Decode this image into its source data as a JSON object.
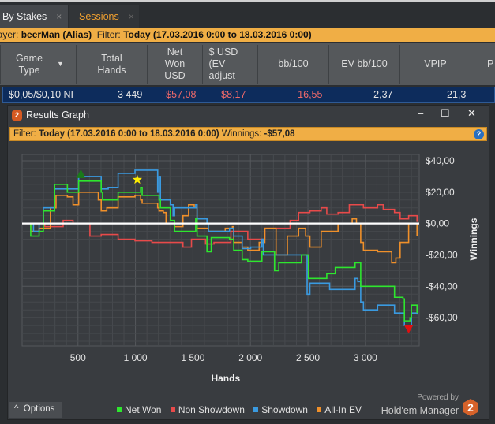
{
  "tabs": [
    {
      "label": "By Stakes",
      "close": "×",
      "active": true
    },
    {
      "label": "Sessions",
      "close": "×",
      "active": false
    }
  ],
  "filter_bar": {
    "player_label": "Player:",
    "player": "beerMan (Alias)",
    "filter_label": "Filter:",
    "filter": "Today (17.03.2016 0:00 to 18.03.2016 0:00)"
  },
  "table": {
    "columns": [
      "Game Type",
      "Total Hands",
      "Net Won USD",
      "$ USD (EV adjust",
      "bb/100",
      "EV bb/100",
      "VPIP",
      "P"
    ],
    "row": {
      "game_type": "$0,05/$0,10 NI",
      "total_hands": "3 449",
      "net_won": "-$57,08",
      "ev_usd": "-$8,17",
      "bb100": "-16,55",
      "ev_bb100": "-2,37",
      "vpip": "21,3"
    }
  },
  "window": {
    "title": "Results Graph",
    "filter_label": "Filter:",
    "filter": "Today (17.03.2016 0:00 to 18.03.2016 0:00)",
    "winnings_label": "Winnings:",
    "winnings": "-$57,08",
    "options_label": "Options",
    "powered_by": "Powered by",
    "brand": "Hold'em Manager",
    "brand_logo": "2"
  },
  "colors": {
    "net_won": "#2ee62e",
    "non_showdown": "#e84a4a",
    "showdown": "#3a9ae0",
    "all_in_ev": "#f0902a",
    "accent": "#f0ae45"
  },
  "chart_data": {
    "type": "line",
    "xlabel": "Hands",
    "ylabel": "Winnings",
    "grid": true,
    "legend": "bottom",
    "xlim": [
      14,
      3468
    ],
    "ylim": [
      -78,
      44
    ],
    "xticks": [
      500,
      1000,
      1500,
      2000,
      2500,
      3000
    ],
    "xtick_labels": [
      "500",
      "1 000",
      "1 500",
      "2 000",
      "2 500",
      "3 000"
    ],
    "yticks": [
      40,
      20,
      0,
      -20,
      -40,
      -60
    ],
    "ytick_labels": [
      "$40,00",
      "$20,00",
      "$0,00",
      "-$20,00",
      "-$40,00",
      "-$60,00"
    ],
    "series": [
      {
        "name": "Non Showdown",
        "x": [
          15,
          211,
          371,
          457,
          604,
          702,
          849,
          996,
          1143,
          1291,
          1413,
          1487,
          1610,
          1683,
          1830,
          1977,
          2125,
          2247,
          2345,
          2419,
          2517,
          2615,
          2664,
          2762,
          2860,
          2910,
          2983,
          3106,
          3155,
          3253,
          3302,
          3376,
          3449
        ],
        "y": [
          0,
          -2,
          2,
          0,
          -8,
          -7,
          -10,
          -11,
          -12,
          -12,
          -15,
          -10,
          -13,
          -12,
          -5,
          -10,
          -3,
          -3,
          2,
          7,
          8,
          10,
          6,
          7,
          12,
          12,
          10,
          12,
          9,
          7,
          3,
          5,
          1
        ]
      },
      {
        "name": "All-In EV",
        "x": [
          15,
          89,
          162,
          260,
          309,
          408,
          457,
          493,
          506,
          677,
          702,
          751,
          849,
          898,
          996,
          1045,
          1058,
          1193,
          1205,
          1242,
          1266,
          1340,
          1413,
          1462,
          1511,
          1536,
          1634,
          1781,
          1843,
          1855,
          1928,
          1977,
          2076,
          2125,
          2223,
          2321,
          2419,
          2480,
          2517,
          2615,
          2762,
          2885,
          2922,
          2959,
          2983,
          3106,
          3229,
          3265,
          3302,
          3376,
          3449
        ],
        "y": [
          0,
          -5,
          -3,
          10,
          18,
          17,
          12,
          12,
          20,
          15,
          8,
          10,
          17,
          17,
          18,
          15,
          13,
          10,
          8,
          7,
          0,
          -2,
          5,
          12,
          10,
          -3,
          -5,
          -3,
          -2,
          -12,
          -15,
          -17,
          -12,
          -3,
          -20,
          -8,
          -3,
          -8,
          -15,
          -5,
          0,
          3,
          0,
          -12,
          -17,
          -18,
          -25,
          -22,
          -12,
          0,
          -8
        ]
      },
      {
        "name": "Showdown",
        "x": [
          15,
          113,
          162,
          199,
          297,
          506,
          677,
          702,
          763,
          849,
          996,
          1058,
          1193,
          1205,
          1217,
          1303,
          1327,
          1340,
          1524,
          1536,
          1622,
          1634,
          1818,
          1855,
          1928,
          2002,
          2100,
          2112,
          2210,
          2272,
          2444,
          2480,
          2493,
          2517,
          2664,
          2689,
          2910,
          2934,
          2959,
          2983,
          3106,
          3253,
          3327,
          3339,
          3400,
          3449
        ],
        "y": [
          0,
          -5,
          0,
          10,
          22,
          30,
          30,
          22,
          23,
          32,
          34,
          34,
          20,
          30,
          15,
          12,
          5,
          10,
          12,
          3,
          0,
          -5,
          -3,
          -8,
          -16,
          -15,
          -10,
          -20,
          -20,
          -20,
          -20,
          -20,
          -45,
          -38,
          -38,
          -42,
          -35,
          -37,
          -50,
          -55,
          -52,
          -57,
          -57,
          -65,
          -57,
          -58
        ]
      },
      {
        "name": "Net Won",
        "x": [
          15,
          89,
          162,
          199,
          297,
          408,
          493,
          506,
          702,
          714,
          849,
          1045,
          1058,
          1205,
          1217,
          1303,
          1340,
          1524,
          1536,
          1622,
          1659,
          1818,
          1855,
          1928,
          1977,
          2100,
          2210,
          2247,
          2444,
          2480,
          2505,
          2664,
          2738,
          2910,
          2959,
          3106,
          3253,
          3327,
          3339,
          3388,
          3400,
          3449
        ],
        "y": [
          0,
          -8,
          -5,
          8,
          25,
          20,
          20,
          27,
          20,
          15,
          20,
          23,
          18,
          15,
          10,
          2,
          -5,
          3,
          -8,
          -18,
          -9,
          -10,
          -17,
          -23,
          -24,
          -18,
          -30,
          -25,
          -20,
          -20,
          -35,
          -32,
          -28,
          -25,
          -40,
          -40,
          -47,
          -48,
          -62,
          -60,
          -52,
          -57
        ]
      }
    ],
    "markers": [
      {
        "label": "max",
        "x": 525,
        "y": 31,
        "shape": "triangle-up",
        "color": "#1a7a1a"
      },
      {
        "label": "star",
        "x": 1016,
        "y": 28,
        "shape": "star",
        "color": "#ffee00"
      },
      {
        "label": "min",
        "x": 3376,
        "y": -67,
        "shape": "triangle-down",
        "color": "#e01010"
      }
    ]
  }
}
